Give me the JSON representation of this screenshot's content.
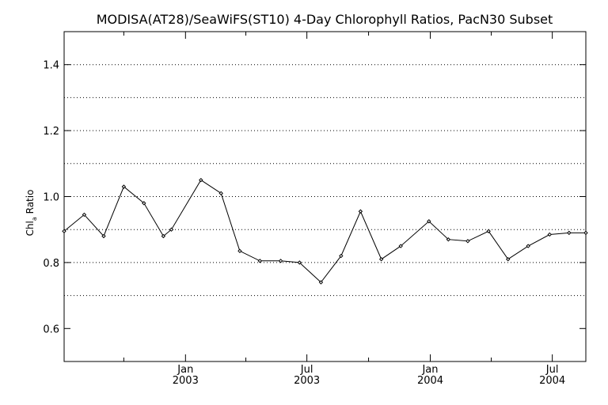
{
  "chart_data": {
    "type": "line",
    "title": "MODISA(AT28)/SeaWiFS(ST10) 4-Day Chlorophyll Ratios, PacN30 Subset",
    "xlabel": "",
    "ylabel": "Chl a Ratio",
    "ylabel_base": "Chl",
    "ylabel_sub": "a",
    "ylabel_rest": " Ratio",
    "xlim": [
      "2002-07-04",
      "2004-08-20"
    ],
    "ylim": [
      0.5,
      1.5
    ],
    "y_ticks": [
      0.6,
      0.8,
      1.0,
      1.2,
      1.4
    ],
    "y_tick_labels": [
      "0.6",
      "0.8",
      "1.0",
      "1.2",
      "1.4"
    ],
    "y_gridlines": [
      0.7,
      0.8,
      0.9,
      1.0,
      1.1,
      1.2,
      1.3,
      1.4
    ],
    "x_major_ticks": [
      {
        "date": "2003-01-01",
        "label_top": "Jan",
        "label_bottom": "2003"
      },
      {
        "date": "2003-07-01",
        "label_top": "Jul",
        "label_bottom": "2003"
      },
      {
        "date": "2004-01-01",
        "label_top": "Jan",
        "label_bottom": "2004"
      },
      {
        "date": "2004-07-01",
        "label_top": "Jul",
        "label_bottom": "2004"
      }
    ],
    "x_minor_ticks": [
      "2002-10-01",
      "2003-04-01",
      "2003-10-01",
      "2004-04-01"
    ],
    "grid": true,
    "series": [
      {
        "color": "#000000",
        "marker": "diamond",
        "x": [
          "2002-07-04",
          "2002-08-03",
          "2002-09-01",
          "2002-10-01",
          "2002-10-31",
          "2002-11-29",
          "2002-12-11",
          "2003-01-24",
          "2003-02-23",
          "2003-03-23",
          "2003-04-22",
          "2003-05-23",
          "2003-06-20",
          "2003-07-22",
          "2003-08-21",
          "2003-09-19",
          "2003-10-20",
          "2003-11-18",
          "2003-12-30",
          "2004-01-28",
          "2004-02-26",
          "2004-03-28",
          "2004-04-26",
          "2004-05-26",
          "2004-06-27",
          "2004-07-26",
          "2004-08-20"
        ],
        "y": [
          0.895,
          0.945,
          0.88,
          1.03,
          0.98,
          0.88,
          0.9,
          1.05,
          1.01,
          0.835,
          0.805,
          0.805,
          0.8,
          0.74,
          0.82,
          0.955,
          0.81,
          0.85,
          0.925,
          0.87,
          0.865,
          0.895,
          0.81,
          0.85,
          0.885,
          0.89,
          0.89
        ]
      }
    ]
  }
}
